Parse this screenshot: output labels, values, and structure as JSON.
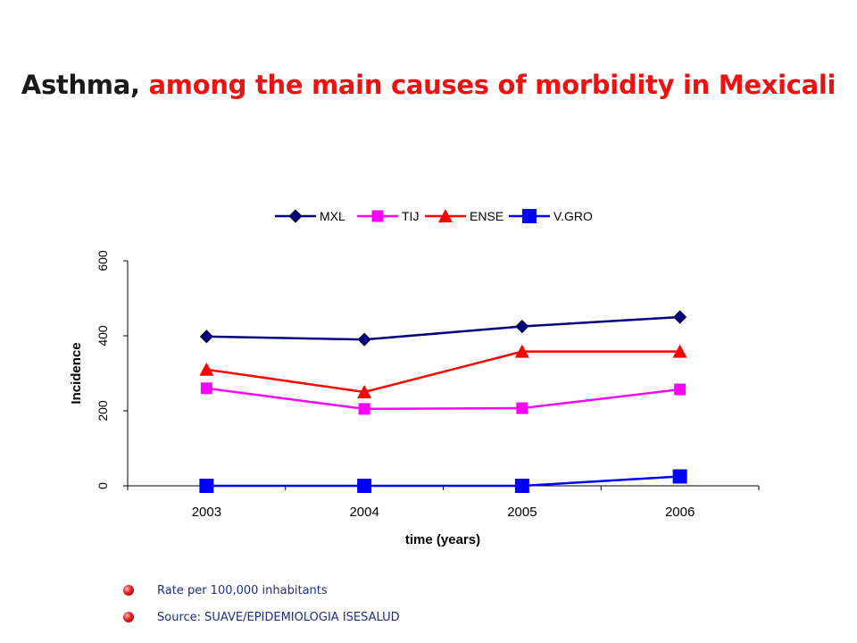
{
  "page": {
    "title_part1": "Asthma,",
    "title_part2": "among the main causes of morbidity in Mexicali",
    "notes": [
      "Rate per 100,000 inhabitants",
      "Source: SUAVE/EPIDEMIOLOGIA ISESALUD"
    ],
    "colors": {
      "title_dark": "#1a1a1a",
      "title_red": "#ee1111",
      "note_text": "#1c2d8c",
      "bullet": "#e02020"
    }
  },
  "chart_data": {
    "type": "line",
    "title": "",
    "xlabel": "time (years)",
    "ylabel": "Incidence",
    "categories": [
      "2003",
      "2004",
      "2005",
      "2006"
    ],
    "ylim": [
      0,
      600
    ],
    "yticks": [
      0,
      200,
      400,
      600
    ],
    "grid": false,
    "legend_position": "top",
    "series": [
      {
        "name": "MXL",
        "values": [
          398,
          390,
          425,
          450
        ],
        "color": "#000080",
        "marker": "diamond"
      },
      {
        "name": "TIJ",
        "values": [
          260,
          205,
          207,
          257
        ],
        "color": "#ff00ff",
        "marker": "square"
      },
      {
        "name": "ENSE",
        "values": [
          310,
          250,
          358,
          358
        ],
        "color": "#ff0000",
        "marker": "triangle"
      },
      {
        "name": "V.GRO",
        "values": [
          0,
          0,
          0,
          25
        ],
        "color": "#0000ff",
        "marker": "square-large"
      }
    ]
  }
}
